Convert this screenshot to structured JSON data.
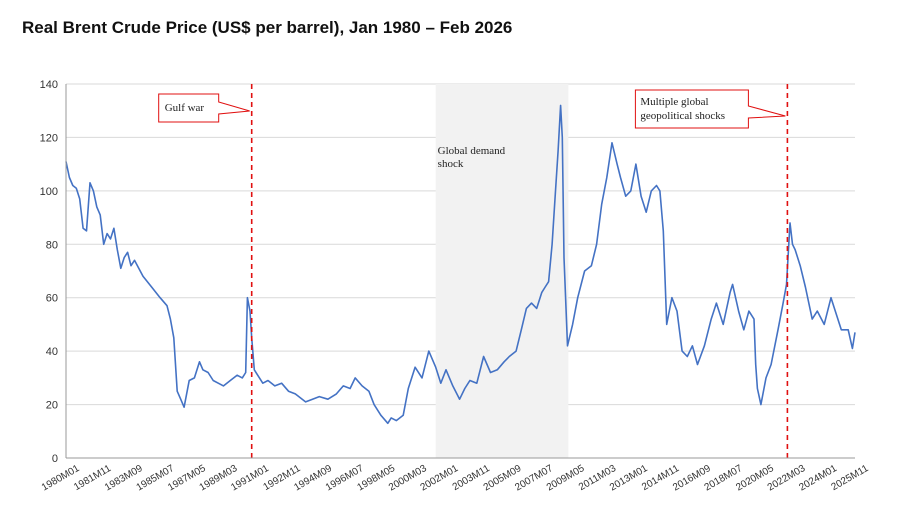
{
  "chart_data": {
    "type": "line",
    "title": "Real Brent Crude Price (US$ per barrel), Jan 1980 – Feb 2026",
    "xlabel": "",
    "ylabel": "",
    "ylim": [
      0,
      140
    ],
    "y_ticks": [
      0,
      20,
      40,
      60,
      80,
      100,
      120,
      140
    ],
    "x_tick_labels": [
      "1980M01",
      "1981M11",
      "1983M09",
      "1985M07",
      "1987M05",
      "1989M03",
      "1991M01",
      "1992M11",
      "1994M09",
      "1996M07",
      "1998M05",
      "2000M03",
      "2002M01",
      "2003M11",
      "2005M09",
      "2007M07",
      "2009M05",
      "2011M03",
      "2013M01",
      "2014M11",
      "2016M09",
      "2018M07",
      "2020M05",
      "2022M03",
      "2024M01",
      "2025M11"
    ],
    "grid": "horizontal",
    "line_color": "#4472c4",
    "series": [
      {
        "x": [
          1980.0,
          1980.2,
          1980.4,
          1980.6,
          1980.8,
          1981.0,
          1981.2,
          1981.4,
          1981.6,
          1981.8,
          1982.0,
          1982.2,
          1982.4,
          1982.6,
          1982.8,
          1983.0,
          1983.2,
          1983.4,
          1983.6,
          1983.8,
          1984.0,
          1984.5,
          1985.0,
          1985.5,
          1985.9,
          1986.1,
          1986.3,
          1986.5,
          1986.7,
          1986.9,
          1987.2,
          1987.5,
          1987.8,
          1988.0,
          1988.3,
          1988.6,
          1988.9,
          1989.2,
          1989.6,
          1990.0,
          1990.3,
          1990.5,
          1990.6,
          1990.75,
          1990.85,
          1991.0,
          1991.2,
          1991.5,
          1991.8,
          1992.2,
          1992.6,
          1993.0,
          1993.4,
          1993.8,
          1994.0,
          1994.4,
          1994.8,
          1995.3,
          1995.8,
          1996.2,
          1996.6,
          1996.9,
          1997.3,
          1997.7,
          1998.0,
          1998.4,
          1998.8,
          1999.0,
          1999.3,
          1999.7,
          2000.0,
          2000.4,
          2000.8,
          2001.2,
          2001.6,
          2001.9,
          2002.2,
          2002.6,
          2003.0,
          2003.3,
          2003.6,
          2004.0,
          2004.4,
          2004.8,
          2005.2,
          2005.6,
          2005.9,
          2006.3,
          2006.6,
          2006.9,
          2007.2,
          2007.5,
          2007.8,
          2008.0,
          2008.2,
          2008.4,
          2008.5,
          2008.6,
          2008.75,
          2008.9,
          2009.0,
          2009.1,
          2009.3,
          2009.6,
          2009.9,
          2010.3,
          2010.7,
          2011.0,
          2011.3,
          2011.6,
          2011.9,
          2012.2,
          2012.4,
          2012.7,
          2013.0,
          2013.3,
          2013.6,
          2013.9,
          2014.2,
          2014.5,
          2014.7,
          2014.9,
          2015.1,
          2015.4,
          2015.7,
          2016.0,
          2016.3,
          2016.6,
          2016.9,
          2017.3,
          2017.7,
          2018.0,
          2018.4,
          2018.8,
          2018.95,
          2019.3,
          2019.6,
          2019.9,
          2020.2,
          2020.3,
          2020.4,
          2020.6,
          2020.9,
          2021.2,
          2021.6,
          2021.9,
          2022.1,
          2022.3,
          2022.45,
          2022.6,
          2022.9,
          2023.2,
          2023.6,
          2023.9,
          2024.3,
          2024.7,
          2024.95,
          2025.3,
          2025.7,
          2025.95,
          2026.1
        ],
        "values": [
          111,
          105,
          102,
          101,
          97,
          86,
          85,
          103,
          100,
          94,
          91,
          80,
          84,
          82,
          86,
          78,
          71,
          75,
          77,
          72,
          74,
          68,
          64,
          60,
          57,
          52,
          45,
          25,
          22,
          19,
          29,
          30,
          36,
          33,
          32,
          29,
          28,
          27,
          29,
          31,
          30,
          32,
          60,
          55,
          45,
          33,
          31,
          28,
          29,
          27,
          28,
          25,
          24,
          22,
          21,
          22,
          23,
          22,
          24,
          27,
          26,
          30,
          27,
          25,
          20,
          16,
          13,
          15,
          14,
          16,
          26,
          34,
          30,
          40,
          34,
          28,
          33,
          27,
          22,
          26,
          29,
          28,
          38,
          32,
          33,
          36,
          38,
          40,
          48,
          56,
          58,
          56,
          62,
          64,
          66,
          80,
          90,
          100,
          115,
          132,
          120,
          75,
          42,
          50,
          60,
          70,
          72,
          80,
          95,
          105,
          118,
          110,
          105,
          98,
          100,
          110,
          98,
          92,
          100,
          102,
          100,
          85,
          50,
          60,
          55,
          40,
          38,
          42,
          35,
          42,
          52,
          58,
          50,
          62,
          65,
          55,
          48,
          55,
          52,
          35,
          26,
          20,
          30,
          35,
          48,
          58,
          65,
          88,
          80,
          78,
          72,
          64,
          52,
          55,
          50,
          60,
          55,
          48,
          48,
          41,
          47
        ]
      }
    ],
    "shaded_region": {
      "label": "Global demand shock",
      "x_range": [
        2001.6,
        2009.35
      ]
    },
    "annotations": [
      {
        "label": "Gulf war",
        "x": 1990.85
      },
      {
        "label": "Multiple global geopolitical shocks",
        "x": 2022.15
      }
    ]
  }
}
